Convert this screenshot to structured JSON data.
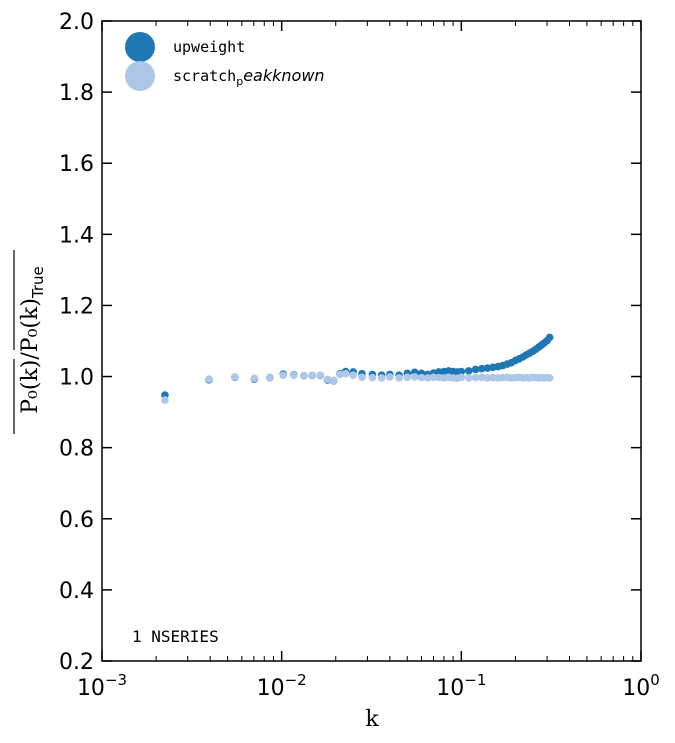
{
  "chart_data": {
    "type": "scatter",
    "xlabel": "k",
    "ylabel_parts": {
      "num": "P₀(k)",
      "den": "P₀(k)",
      "sub": "True"
    },
    "xscale": "log",
    "xlim": [
      0.001,
      1.0
    ],
    "ylim": [
      0.2,
      2.0
    ],
    "yticks": [
      "0.2",
      "0.4",
      "0.6",
      "0.8",
      "1.0",
      "1.2",
      "1.4",
      "1.6",
      "1.8",
      "2.0"
    ],
    "xticks": [
      {
        "base": "10",
        "exp": "−3"
      },
      {
        "base": "10",
        "exp": "−2"
      },
      {
        "base": "10",
        "exp": "−1"
      },
      {
        "base": "10",
        "exp": "0"
      }
    ],
    "grid": false,
    "legend_position": "top-left",
    "annotation": "1 NSERIES",
    "series": [
      {
        "name": "upweight",
        "name_sub": "",
        "color": "#1f77b4",
        "x": [
          0.00224,
          0.00394,
          0.00549,
          0.00705,
          0.0086,
          0.0102,
          0.0117,
          0.0133,
          0.0148,
          0.0164,
          0.018,
          0.0195,
          0.0211,
          0.0227,
          0.025,
          0.028,
          0.032,
          0.036,
          0.04,
          0.045,
          0.05,
          0.055,
          0.06,
          0.065,
          0.07,
          0.075,
          0.08,
          0.085,
          0.09,
          0.095,
          0.1,
          0.11,
          0.12,
          0.13,
          0.14,
          0.15,
          0.16,
          0.17,
          0.18,
          0.19,
          0.2,
          0.21,
          0.22,
          0.23,
          0.24,
          0.25,
          0.26,
          0.27,
          0.28,
          0.29,
          0.3,
          0.31
        ],
        "y": [
          0.948,
          0.991,
          0.998,
          0.993,
          0.997,
          1.007,
          1.005,
          1.002,
          1.003,
          1.003,
          0.99,
          0.988,
          1.008,
          1.014,
          1.013,
          1.008,
          1.006,
          1.004,
          1.006,
          1.004,
          1.009,
          1.012,
          1.009,
          1.006,
          1.01,
          1.013,
          1.014,
          1.016,
          1.014,
          1.013,
          1.014,
          1.016,
          1.02,
          1.022,
          1.024,
          1.026,
          1.028,
          1.031,
          1.035,
          1.039,
          1.045,
          1.05,
          1.055,
          1.061,
          1.066,
          1.071,
          1.077,
          1.083,
          1.089,
          1.095,
          1.101,
          1.11
        ]
      },
      {
        "name": "scratch",
        "name_sub": "peakknown",
        "color": "#aec7e8",
        "x": [
          0.00224,
          0.00394,
          0.00549,
          0.00705,
          0.0086,
          0.0102,
          0.0117,
          0.0133,
          0.0148,
          0.0164,
          0.018,
          0.0195,
          0.0211,
          0.0227,
          0.025,
          0.028,
          0.032,
          0.036,
          0.04,
          0.045,
          0.05,
          0.055,
          0.06,
          0.065,
          0.07,
          0.075,
          0.08,
          0.085,
          0.09,
          0.095,
          0.1,
          0.11,
          0.12,
          0.13,
          0.14,
          0.15,
          0.16,
          0.17,
          0.18,
          0.19,
          0.2,
          0.21,
          0.22,
          0.23,
          0.24,
          0.25,
          0.26,
          0.27,
          0.28,
          0.29,
          0.3,
          0.31
        ],
        "y": [
          0.934,
          0.993,
          0.999,
          0.995,
          0.998,
          1.004,
          1.004,
          1.002,
          1.004,
          1.004,
          0.992,
          0.989,
          1.006,
          1.008,
          1.004,
          0.998,
          0.997,
          0.996,
          0.999,
          0.996,
          0.998,
          0.999,
          0.997,
          0.996,
          0.998,
          0.997,
          0.996,
          0.998,
          0.996,
          0.995,
          0.998,
          0.996,
          0.997,
          0.998,
          0.996,
          0.997,
          0.996,
          0.997,
          0.998,
          0.996,
          0.997,
          0.998,
          0.996,
          0.997,
          0.996,
          0.998,
          0.997,
          0.996,
          0.997,
          0.996,
          0.997,
          0.996
        ]
      }
    ]
  }
}
